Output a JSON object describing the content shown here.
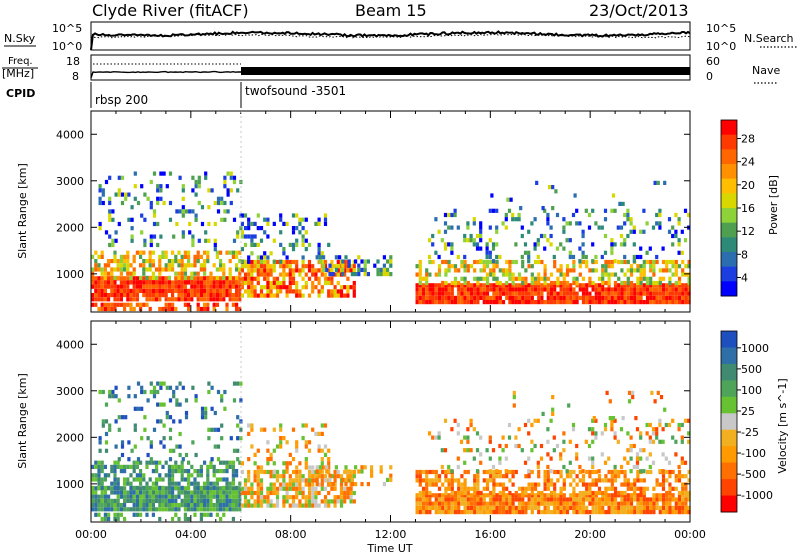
{
  "header": {
    "station": "Clyde River (fitACF)",
    "beam": "Beam 15",
    "date": "23/Oct/2013"
  },
  "top_panels": {
    "nsky_label": "N.Sky",
    "nsearch_label": "N.Search",
    "nsky_ticks": [
      "10^5",
      "10^0"
    ],
    "nsearch_ticks": [
      "10^5",
      "10^0"
    ],
    "freq_label": "Freq.",
    "freq_unit": "[MHz]",
    "freq_ticks": [
      "18",
      "8"
    ],
    "nave_label": "Nave",
    "nave_ticks": [
      "60",
      "0"
    ],
    "cpid_label": "CPID",
    "cpid_segments": [
      {
        "name": "rbsp 200",
        "start_h": 0
      },
      {
        "name": "twofsound -3501",
        "start_h": 6
      }
    ]
  },
  "chart_data": [
    {
      "type": "heatmap",
      "name": "power",
      "xlabel": "Time UT",
      "ylabel": "Slant Range [km]",
      "x_ticks": [
        "00:00",
        "04:00",
        "08:00",
        "12:00",
        "16:00",
        "20:00",
        "00:00"
      ],
      "y_ticks": [
        "1000",
        "2000",
        "3000",
        "4000"
      ],
      "xlim_hours": [
        0,
        24
      ],
      "ylim_km": [
        180,
        4500
      ],
      "colorbar": {
        "label": "Power [dB]",
        "ticks": [
          "28",
          "24",
          "20",
          "16",
          "12",
          "8",
          "4"
        ],
        "colors": [
          "#ff0000",
          "#ff3a00",
          "#ff6600",
          "#ff9000",
          "#ffbe00",
          "#d8d800",
          "#8ed23a",
          "#4ea050",
          "#2e8a78",
          "#2a6eb0",
          "#1a3ee0",
          "#0000ff"
        ]
      }
    },
    {
      "type": "heatmap",
      "name": "velocity",
      "xlabel": "Time UT",
      "ylabel": "Slant Range [km]",
      "x_ticks": [
        "00:00",
        "04:00",
        "08:00",
        "12:00",
        "16:00",
        "20:00",
        "00:00"
      ],
      "y_ticks": [
        "1000",
        "2000",
        "3000",
        "4000"
      ],
      "xlim_hours": [
        0,
        24
      ],
      "ylim_km": [
        180,
        4500
      ],
      "colorbar": {
        "label": "Velocity [m s^-1]",
        "ticks": [
          "1000",
          "500",
          "100",
          "25",
          "-25",
          "-100",
          "-500",
          "-1000"
        ],
        "colors": [
          "#1e4fbf",
          "#2e6fa8",
          "#3f8a70",
          "#4ea55a",
          "#66c230",
          "#c8c8c8",
          "#f2b020",
          "#ff9a00",
          "#ff7000",
          "#ff4400",
          "#ff0000"
        ]
      }
    }
  ]
}
